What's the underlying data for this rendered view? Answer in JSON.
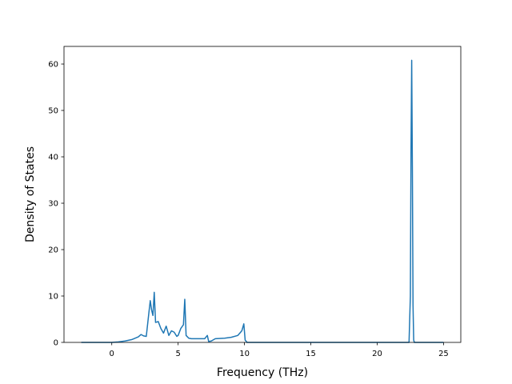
{
  "chart_data": {
    "type": "line",
    "title": "",
    "xlabel": "Frequency (THz)",
    "ylabel": "Density of States",
    "xlim": [
      -3.6,
      26.3
    ],
    "ylim": [
      0,
      63.8
    ],
    "xticks": [
      0,
      5,
      10,
      15,
      20,
      25
    ],
    "yticks": [
      0,
      10,
      20,
      30,
      40,
      50,
      60
    ],
    "xtick_labels": [
      "0",
      "5",
      "10",
      "15",
      "20",
      "25"
    ],
    "ytick_labels": [
      "0",
      "10",
      "20",
      "30",
      "40",
      "50",
      "60"
    ],
    "grid": false,
    "legend": "none",
    "line_color": "#1f77b4",
    "series": [
      {
        "x": [
          -2.3,
          -1.5,
          -1.0,
          -0.5,
          0.0,
          0.5,
          1.0,
          1.5,
          2.0,
          2.2,
          2.4,
          2.6,
          2.8,
          2.9,
          3.0,
          3.1,
          3.2,
          3.3,
          3.5,
          3.7,
          3.9,
          4.1,
          4.3,
          4.5,
          4.7,
          4.9,
          5.0,
          5.2,
          5.4,
          5.5,
          5.6,
          5.8,
          6.0,
          6.5,
          7.0,
          7.2,
          7.3,
          7.5,
          7.8,
          8.5,
          9.0,
          9.5,
          9.8,
          9.95,
          10.05,
          10.2,
          10.6,
          12.0,
          15.0,
          20.0,
          22.4,
          22.5,
          22.55,
          22.6,
          22.65,
          22.7,
          22.75,
          22.8,
          23.0,
          25.0
        ],
        "y": [
          0.0,
          0.0,
          0.0,
          0.0,
          0.0,
          0.1,
          0.3,
          0.6,
          1.2,
          1.7,
          1.4,
          1.3,
          6.5,
          9.0,
          7.0,
          5.8,
          10.8,
          4.3,
          4.5,
          3.0,
          2.0,
          3.5,
          1.5,
          2.5,
          2.2,
          1.3,
          1.5,
          3.0,
          3.8,
          9.3,
          1.5,
          0.9,
          0.8,
          0.8,
          0.8,
          1.5,
          0.2,
          0.3,
          0.8,
          0.9,
          1.1,
          1.5,
          2.5,
          4.0,
          0.5,
          0.0,
          0.0,
          0.0,
          0.0,
          0.0,
          0.0,
          10.0,
          42.0,
          60.8,
          38.0,
          8.0,
          0.5,
          0.0,
          0.0,
          0.0
        ]
      }
    ]
  }
}
